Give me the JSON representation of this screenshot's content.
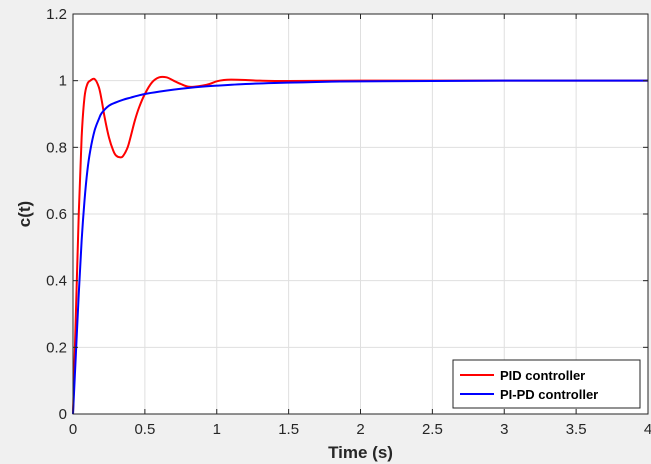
{
  "chart_data": {
    "type": "line",
    "xlabel": "Time (s)",
    "ylabel": "c(t)",
    "xlim": [
      0,
      4
    ],
    "ylim": [
      0,
      1.2
    ],
    "x_ticks": [
      0,
      0.5,
      1,
      1.5,
      2,
      2.5,
      3,
      3.5,
      4
    ],
    "x_tick_labels": [
      "0",
      "0.5",
      "1",
      "1.5",
      "2",
      "2.5",
      "3",
      "3.5",
      "4"
    ],
    "y_ticks": [
      0,
      0.2,
      0.4,
      0.6,
      0.8,
      1,
      1.2
    ],
    "y_tick_labels": [
      "0",
      "0.2",
      "0.4",
      "0.6",
      "0.8",
      "1",
      "1.2"
    ],
    "grid": true,
    "legend_position": "bottom-right",
    "series": [
      {
        "name": "PID controller",
        "color": "#ff0000",
        "x": [
          0,
          0.02,
          0.04,
          0.06,
          0.08,
          0.1,
          0.12,
          0.15,
          0.18,
          0.2,
          0.22,
          0.25,
          0.28,
          0.3,
          0.33,
          0.35,
          0.38,
          0.4,
          0.43,
          0.46,
          0.5,
          0.55,
          0.6,
          0.65,
          0.7,
          0.75,
          0.8,
          0.85,
          0.9,
          0.95,
          1.0,
          1.05,
          1.1,
          1.2,
          1.3,
          1.5,
          2.0,
          2.5,
          3.0,
          3.5,
          4.0
        ],
        "y": [
          0,
          0.3,
          0.6,
          0.83,
          0.95,
          0.99,
          1.0,
          1.005,
          0.98,
          0.94,
          0.89,
          0.83,
          0.79,
          0.775,
          0.77,
          0.775,
          0.8,
          0.83,
          0.88,
          0.92,
          0.96,
          0.995,
          1.01,
          1.01,
          1.0,
          0.99,
          0.982,
          0.982,
          0.985,
          0.99,
          0.998,
          1.002,
          1.003,
          1.002,
          1.0,
          0.999,
          1.0,
          1.0,
          1.0,
          1.0,
          1.0
        ]
      },
      {
        "name": "PI-PD controller",
        "color": "#0000ff",
        "x": [
          0,
          0.02,
          0.04,
          0.06,
          0.08,
          0.1,
          0.12,
          0.15,
          0.18,
          0.2,
          0.25,
          0.3,
          0.35,
          0.4,
          0.45,
          0.5,
          0.6,
          0.7,
          0.8,
          0.9,
          1.0,
          1.2,
          1.4,
          1.6,
          1.8,
          2.0,
          2.5,
          3.0,
          3.5,
          4.0
        ],
        "y": [
          0,
          0.18,
          0.36,
          0.52,
          0.64,
          0.73,
          0.79,
          0.85,
          0.885,
          0.903,
          0.925,
          0.935,
          0.943,
          0.949,
          0.955,
          0.96,
          0.967,
          0.973,
          0.978,
          0.982,
          0.985,
          0.99,
          0.993,
          0.995,
          0.997,
          0.998,
          0.999,
          1.0,
          1.0,
          1.0
        ]
      }
    ]
  }
}
